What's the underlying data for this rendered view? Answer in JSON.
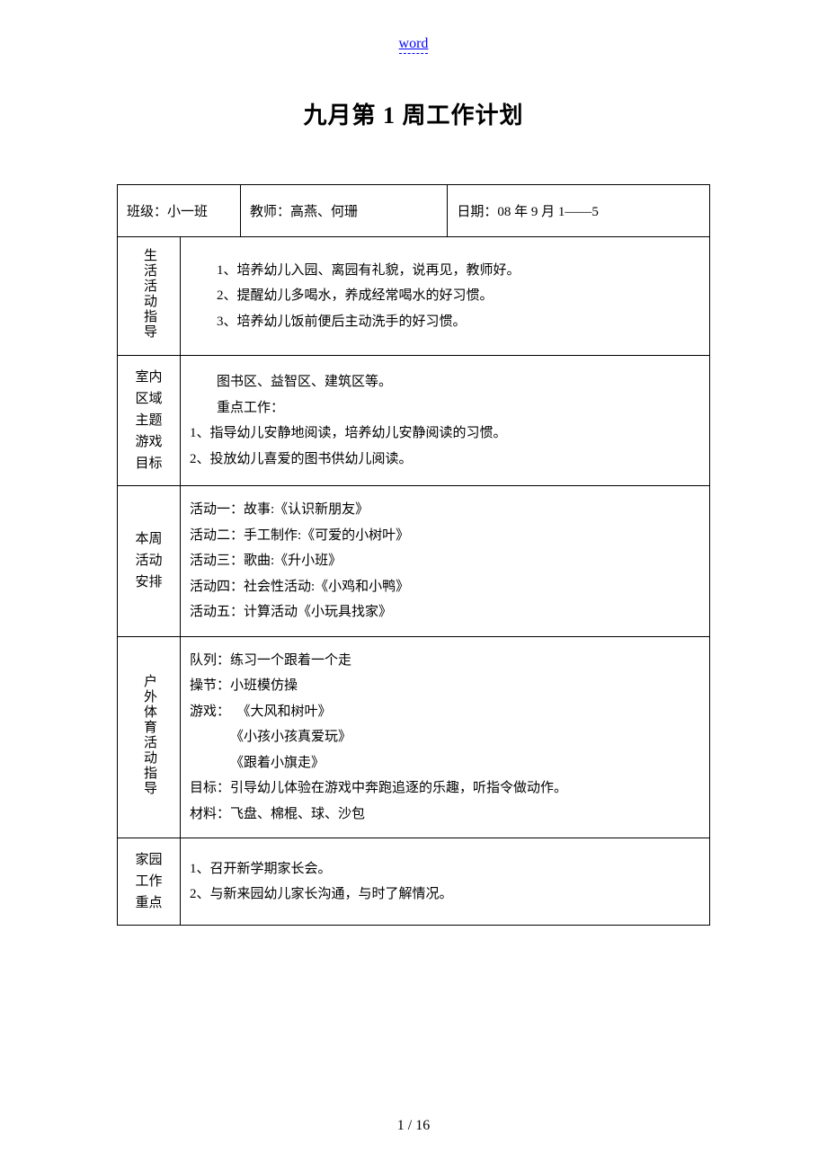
{
  "header_link": "word",
  "title": "九月第 1 周工作计划",
  "info_row": {
    "class_label": "班级：小一班",
    "teacher_label": "教师：高燕、何珊",
    "date_label": "日期：08 年 9 月 1——5"
  },
  "sections": {
    "life_guidance": {
      "label": "生活活动指导",
      "items": [
        "1、培养幼儿入园、离园有礼貌，说再见，教师好。",
        "2、提醒幼儿多喝水，养成经常喝水的好习惯。",
        "3、培养幼儿饭前便后主动洗手的好习惯。"
      ]
    },
    "indoor_theme": {
      "label_lines": [
        "室内",
        "区域",
        "主题",
        "游戏",
        "目标"
      ],
      "intro1": "图书区、益智区、建筑区等。",
      "intro2": "重点工作：",
      "items": [
        "1、指导幼儿安静地阅读，培养幼儿安静阅读的习惯。",
        "2、投放幼儿喜爱的图书供幼儿阅读。"
      ]
    },
    "weekly_activities": {
      "label_lines": [
        "本周",
        "活动",
        "安排"
      ],
      "items": [
        "活动一：故事:《认识新朋友》",
        "活动二：手工制作:《可爱的小树叶》",
        "活动三：歌曲:《升小班》",
        "活动四：社会性活动:《小鸡和小鸭》",
        "活动五：计算活动《小玩具找家》"
      ]
    },
    "outdoor_sports": {
      "label": "户外体育活动指导",
      "lines": [
        "队列：练习一个跟着一个走",
        "操节：小班模仿操",
        "游戏：  《大风和树叶》",
        "            《小孩小孩真爱玩》",
        "            《跟着小旗走》",
        "目标：引导幼儿体验在游戏中奔跑追逐的乐趣，听指令做动作。",
        "材料：飞盘、棉棍、球、沙包"
      ]
    },
    "home_work": {
      "label_lines": [
        "家园",
        "工作",
        "重点"
      ],
      "items": [
        "1、召开新学期家长会。",
        "2、与新来园幼儿家长沟通，与时了解情况。"
      ]
    }
  },
  "page_footer": "1 / 16",
  "colors": {
    "link_color": "#0000ff",
    "text_color": "#000000",
    "border_color": "#000000",
    "background_color": "#ffffff"
  }
}
